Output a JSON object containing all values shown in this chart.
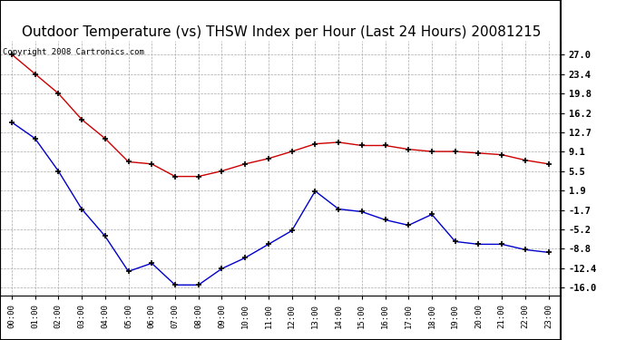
{
  "title": "Outdoor Temperature (vs) THSW Index per Hour (Last 24 Hours) 20081215",
  "copyright": "Copyright 2008 Cartronics.com",
  "hours": [
    "00:00",
    "01:00",
    "02:00",
    "03:00",
    "04:00",
    "05:00",
    "06:00",
    "07:00",
    "08:00",
    "09:00",
    "10:00",
    "11:00",
    "12:00",
    "13:00",
    "14:00",
    "15:00",
    "16:00",
    "17:00",
    "18:00",
    "19:00",
    "20:00",
    "21:00",
    "22:00",
    "23:00"
  ],
  "red_data": [
    27.0,
    23.4,
    19.8,
    15.0,
    11.5,
    7.2,
    6.8,
    4.5,
    4.5,
    5.5,
    6.8,
    7.8,
    9.1,
    10.5,
    10.8,
    10.2,
    10.2,
    9.5,
    9.1,
    9.1,
    8.8,
    8.5,
    7.5,
    6.8
  ],
  "blue_data": [
    14.5,
    11.5,
    5.5,
    -1.5,
    -6.5,
    -13.0,
    -11.5,
    -15.5,
    -15.5,
    -12.5,
    -10.5,
    -8.0,
    -5.5,
    1.8,
    -1.5,
    -2.0,
    -3.5,
    -4.5,
    -2.5,
    -7.5,
    -8.0,
    -8.0,
    -9.0,
    -9.5
  ],
  "yticks": [
    27.0,
    23.4,
    19.8,
    16.2,
    12.7,
    9.1,
    5.5,
    1.9,
    -1.7,
    -5.2,
    -8.8,
    -12.4,
    -16.0
  ],
  "ylim": [
    -17.5,
    29.5
  ],
  "red_color": "#cc0000",
  "blue_color": "#0000cc",
  "grid_color": "#aaaaaa",
  "bg_color": "#ffffff",
  "title_fontsize": 11,
  "copyright_fontsize": 6.5
}
